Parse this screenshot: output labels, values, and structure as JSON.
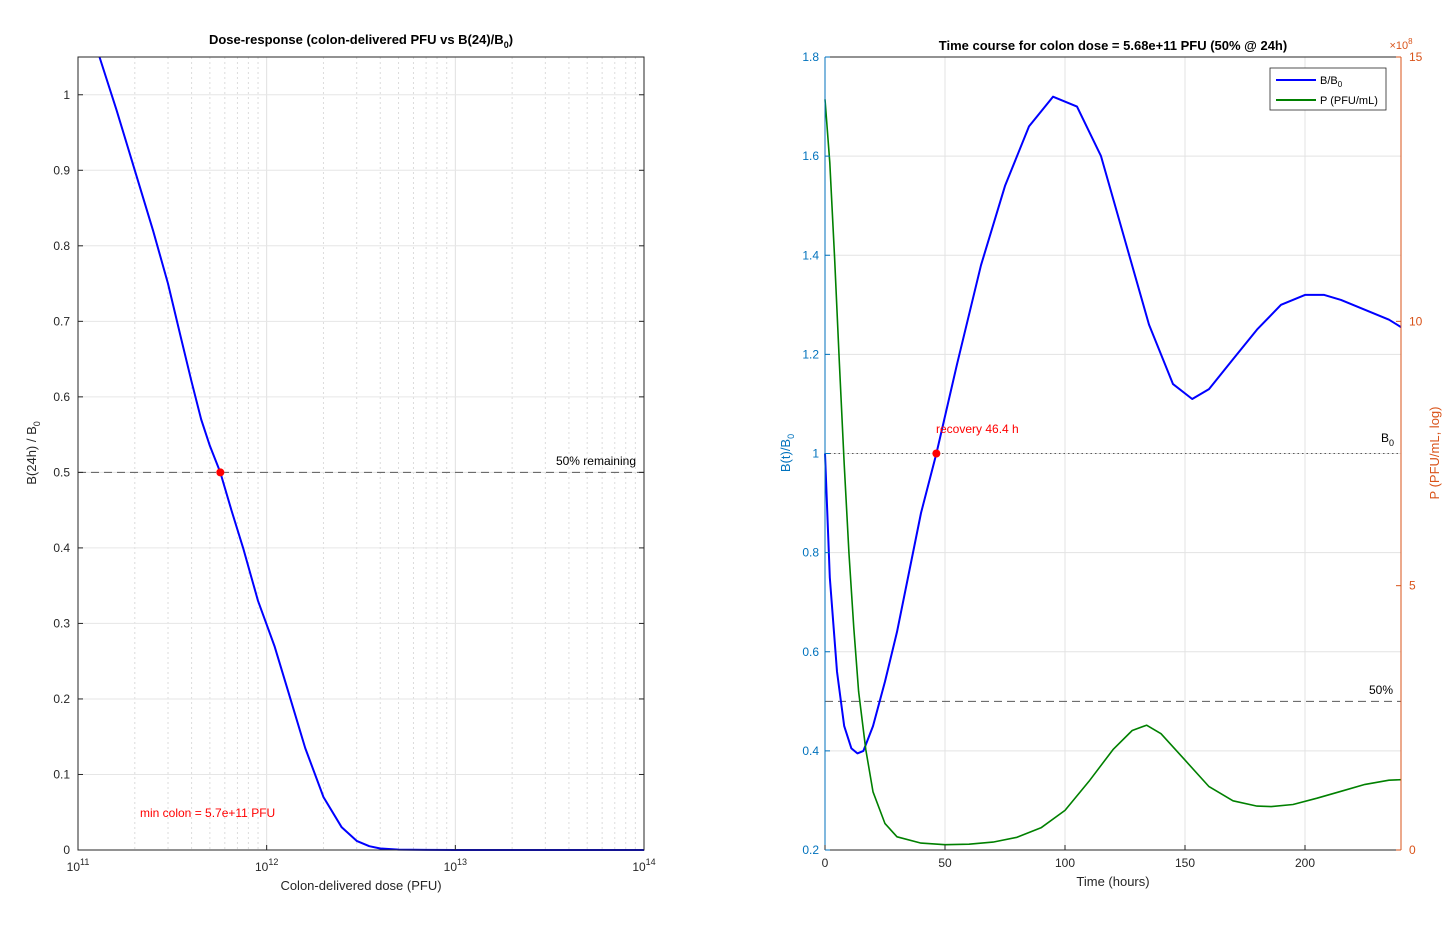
{
  "chart_data": [
    {
      "type": "line",
      "title_main": "Dose-response (colon-delivered PFU vs B(24)/B",
      "title_sub": "0",
      "title_close": ")",
      "xlabel": "Colon-delivered dose (PFU)",
      "ylabel_main": "B(24h) / B",
      "ylabel_sub": "0",
      "xscale": "log",
      "xlim": [
        100000000000.0,
        100000000000000.0
      ],
      "ylim": [
        0,
        1.05
      ],
      "grid": true,
      "x_ticks": [
        {
          "base": "10",
          "exp": "11"
        },
        {
          "base": "10",
          "exp": "12"
        },
        {
          "base": "10",
          "exp": "13"
        },
        {
          "base": "10",
          "exp": "14"
        }
      ],
      "y_ticks": [
        "0",
        "0.1",
        "0.2",
        "0.3",
        "0.4",
        "0.5",
        "0.6",
        "0.7",
        "0.8",
        "0.9",
        "1"
      ],
      "series": [
        {
          "color": "#0000ff",
          "x": [
            130000000000.0,
            160000000000.0,
            200000000000.0,
            250000000000.0,
            300000000000.0,
            350000000000.0,
            400000000000.0,
            450000000000.0,
            500000000000.0,
            568000000000.0,
            650000000000.0,
            750000000000.0,
            900000000000.0,
            1100000000000.0,
            1300000000000.0,
            1600000000000.0,
            2000000000000.0,
            2500000000000.0,
            3000000000000.0,
            3500000000000.0,
            4000000000000.0,
            5000000000000.0,
            7000000000000.0,
            10000000000000.0,
            20000000000000.0,
            50000000000000.0,
            100000000000000.0
          ],
          "y": [
            1.05,
            0.98,
            0.9,
            0.82,
            0.75,
            0.68,
            0.62,
            0.57,
            0.535,
            0.5,
            0.45,
            0.4,
            0.33,
            0.27,
            0.21,
            0.135,
            0.07,
            0.03,
            0.012,
            0.005,
            0.002,
            0.0005,
            0.0001,
            0,
            0,
            0,
            0
          ]
        }
      ],
      "reference_lines": [
        {
          "y": 0.5,
          "style": "dashed",
          "label": "50% remaining"
        }
      ],
      "marker": {
        "x": 568000000000.0,
        "y": 0.5,
        "color": "#ff0000"
      },
      "annotation": {
        "text": "min colon = 5.7e+11 PFU",
        "color": "#ff0000"
      }
    },
    {
      "type": "line",
      "title": "Time course for colon dose = 5.68e+11 PFU (50% @ 24h)",
      "xlabel": "Time (hours)",
      "ylabel_left_main": "B(t)/B",
      "ylabel_left_sub": "0",
      "ylabel_right": "P (PFU/mL, log)",
      "xlim": [
        0,
        240
      ],
      "ylim_left": [
        0.2,
        1.8
      ],
      "ylim_right": [
        0,
        1500000000.0
      ],
      "grid": true,
      "x_ticks": [
        "0",
        "50",
        "100",
        "150",
        "200"
      ],
      "y_ticks_left": [
        "0.2",
        "0.4",
        "0.6",
        "0.8",
        "1",
        "1.2",
        "1.4",
        "1.6",
        "1.8"
      ],
      "y_ticks_right": [
        "0",
        "5",
        "10",
        "15"
      ],
      "right_exponent": {
        "base": "×10",
        "exp": "8"
      },
      "left_axis_color": "#0072bd",
      "right_axis_color": "#d95319",
      "series": [
        {
          "name_main": "B/B",
          "name_sub": "0",
          "axis": "left",
          "color": "#0000ff",
          "x": [
            0,
            2,
            5,
            8,
            11,
            13.5,
            16,
            20,
            25,
            30,
            35,
            40,
            46.4,
            55,
            65,
            75,
            85,
            95,
            105,
            115,
            125,
            135,
            145,
            153,
            160,
            170,
            180,
            190,
            200,
            208,
            215,
            225,
            235,
            240
          ],
          "y": [
            1.0,
            0.75,
            0.56,
            0.45,
            0.405,
            0.395,
            0.4,
            0.45,
            0.54,
            0.64,
            0.76,
            0.88,
            1.0,
            1.18,
            1.38,
            1.54,
            1.66,
            1.72,
            1.7,
            1.6,
            1.43,
            1.26,
            1.14,
            1.11,
            1.13,
            1.19,
            1.25,
            1.3,
            1.32,
            1.32,
            1.31,
            1.29,
            1.27,
            1.255
          ]
        },
        {
          "name": "P (PFU/mL)",
          "axis": "right",
          "color": "#008000",
          "x": [
            0,
            2,
            4,
            6,
            8,
            10,
            12,
            14,
            17,
            20,
            25,
            30,
            40,
            50,
            60,
            70,
            80,
            90,
            100,
            110,
            120,
            128,
            134,
            140,
            150,
            160,
            170,
            180,
            186,
            195,
            205,
            215,
            225,
            235,
            240
          ],
          "y": [
            1420000000.0,
            1300000000.0,
            1120000000.0,
            920000000.0,
            730000000.0,
            560000000.0,
            420000000.0,
            300000000.0,
            190000000.0,
            110000000.0,
            50000000.0,
            25000000.0,
            13000000.0,
            10000000.0,
            11000000.0,
            15000000.0,
            24000000.0,
            42000000.0,
            75000000.0,
            130000000.0,
            190000000.0,
            226000000.0,
            236000000.0,
            220000000.0,
            170000000.0,
            120000000.0,
            93000000.0,
            83000000.0,
            82000000.0,
            86000000.0,
            98000000.0,
            111000000.0,
            124000000.0,
            132000000.0,
            133000000.0
          ]
        }
      ],
      "reference_lines": [
        {
          "y": 1.0,
          "style": "dotted",
          "label_main": "B",
          "label_sub": "0"
        },
        {
          "y": 0.5,
          "style": "dashed",
          "label": "50%"
        }
      ],
      "marker": {
        "x": 46.4,
        "y": 1.0,
        "color": "#ff0000"
      },
      "annotation": {
        "text": "recovery 46.4 h",
        "color": "#ff0000"
      },
      "legend_position": "top-right"
    }
  ]
}
